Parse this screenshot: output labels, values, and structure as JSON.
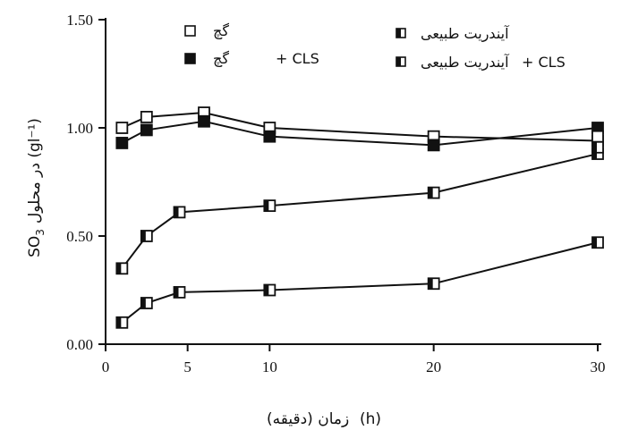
{
  "chart_data": {
    "type": "line",
    "title": "",
    "xlabel": "(h) زمان (دقیقه)",
    "ylabel": "SO3 در محلول (gl⁻¹)",
    "xlim": [
      0,
      30
    ],
    "ylim": [
      0,
      1.5
    ],
    "x_ticks": [
      "0",
      "5",
      "10",
      "20",
      "30"
    ],
    "x_tick_values": [
      0,
      5,
      10,
      20,
      30
    ],
    "y_ticks": [
      "0.00",
      "0.50",
      "1.00",
      "1.50"
    ],
    "y_tick_values": [
      0,
      0.5,
      1.0,
      1.5
    ],
    "grid": false,
    "legend_placement": "top",
    "series": [
      {
        "name": "گچ",
        "marker": "open-square",
        "x": [
          1,
          2.5,
          6,
          10,
          20,
          30
        ],
        "values": [
          1.0,
          1.05,
          1.07,
          1.0,
          0.96,
          0.94
        ]
      },
      {
        "name": "گچ + CLS",
        "marker": "filled-square",
        "x": [
          1,
          2.5,
          6,
          10,
          20,
          30
        ],
        "values": [
          0.93,
          0.99,
          1.03,
          0.96,
          0.92,
          1.0
        ]
      },
      {
        "name": "آیندریت طبیعی",
        "marker": "half-square",
        "x": [
          1,
          2.5,
          4.5,
          10,
          20,
          30
        ],
        "values": [
          0.35,
          0.5,
          0.61,
          0.64,
          0.7,
          0.88
        ]
      },
      {
        "name": "آیندریت طبیعی + CLS",
        "marker": "half-square",
        "x": [
          1,
          2.5,
          4.5,
          10,
          20,
          30
        ],
        "values": [
          0.1,
          0.19,
          0.24,
          0.25,
          0.28,
          0.47
        ]
      }
    ],
    "tail_points": [
      {
        "series": 0,
        "x": 30,
        "y": 0.96
      },
      {
        "series": 2,
        "x": 30,
        "y": 0.91
      }
    ]
  },
  "legend": {
    "gypsum": "گچ",
    "gypsum_cls_prefix": "+ CLS",
    "gypsum_cls_name": "گچ",
    "anhydrite": "آیندریت طبیعی",
    "anhydrite_cls_prefix": "+ CLS",
    "anhydrite_cls_name": "آیندریت طبیعی"
  },
  "axis_titles": {
    "y_so3": "SO",
    "y_sub": "3",
    "y_rest": "در محلول (gl⁻¹)",
    "x_unit": "(h)",
    "x_text": "زمان (دقیقه)"
  }
}
